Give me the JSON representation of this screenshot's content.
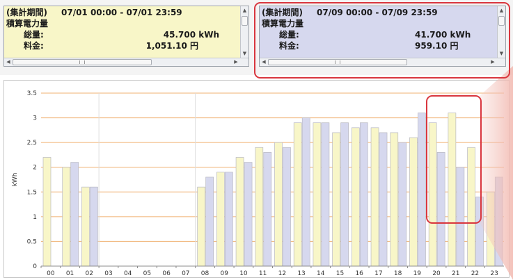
{
  "panels": [
    {
      "period_label": "(集計期間)",
      "period_range": "07/01 00:00 - 07/01 23:59",
      "section_title": "積算電力量",
      "total_label": "総量:",
      "total_value": "45.700 kWh",
      "fee_label": "料金:",
      "fee_value": "1,051.10 円"
    },
    {
      "period_label": "(集計期間)",
      "period_range": "07/09 00:00 - 07/09 23:59",
      "section_title": "積算電力量",
      "total_label": "総量:",
      "total_value": "41.700 kWh",
      "fee_label": "料金:",
      "fee_value": "959.10 円"
    }
  ],
  "colors": {
    "series_a": "#f8f6c8",
    "series_b": "#d6d8ee",
    "gridline": "#f0b071",
    "highlight": "#d9363e"
  },
  "chart_data": {
    "type": "bar",
    "ylabel": "kWh",
    "ylim": [
      0,
      3.5
    ],
    "yticks": [
      "0",
      "0.5",
      "1",
      "1.5",
      "2",
      "2.5",
      "3",
      "3.5"
    ],
    "categories": [
      "00",
      "01",
      "02",
      "03",
      "04",
      "05",
      "06",
      "07",
      "08",
      "09",
      "10",
      "11",
      "12",
      "13",
      "14",
      "15",
      "16",
      "17",
      "18",
      "19",
      "20",
      "21",
      "22",
      "23"
    ],
    "series": [
      {
        "values": [
          2.2,
          2.0,
          1.6,
          0,
          0,
          0,
          0,
          0,
          1.6,
          1.9,
          2.2,
          2.4,
          2.5,
          2.9,
          2.9,
          2.7,
          2.8,
          2.8,
          2.7,
          2.6,
          2.9,
          3.1,
          2.4,
          1.5
        ]
      },
      {
        "values": [
          0,
          2.1,
          1.6,
          0,
          0,
          0,
          0,
          0,
          1.8,
          1.9,
          2.1,
          2.3,
          2.4,
          3.0,
          2.9,
          2.9,
          2.9,
          2.7,
          2.5,
          3.1,
          2.3,
          2.0,
          1.4,
          1.8
        ]
      }
    ],
    "grid": true
  }
}
